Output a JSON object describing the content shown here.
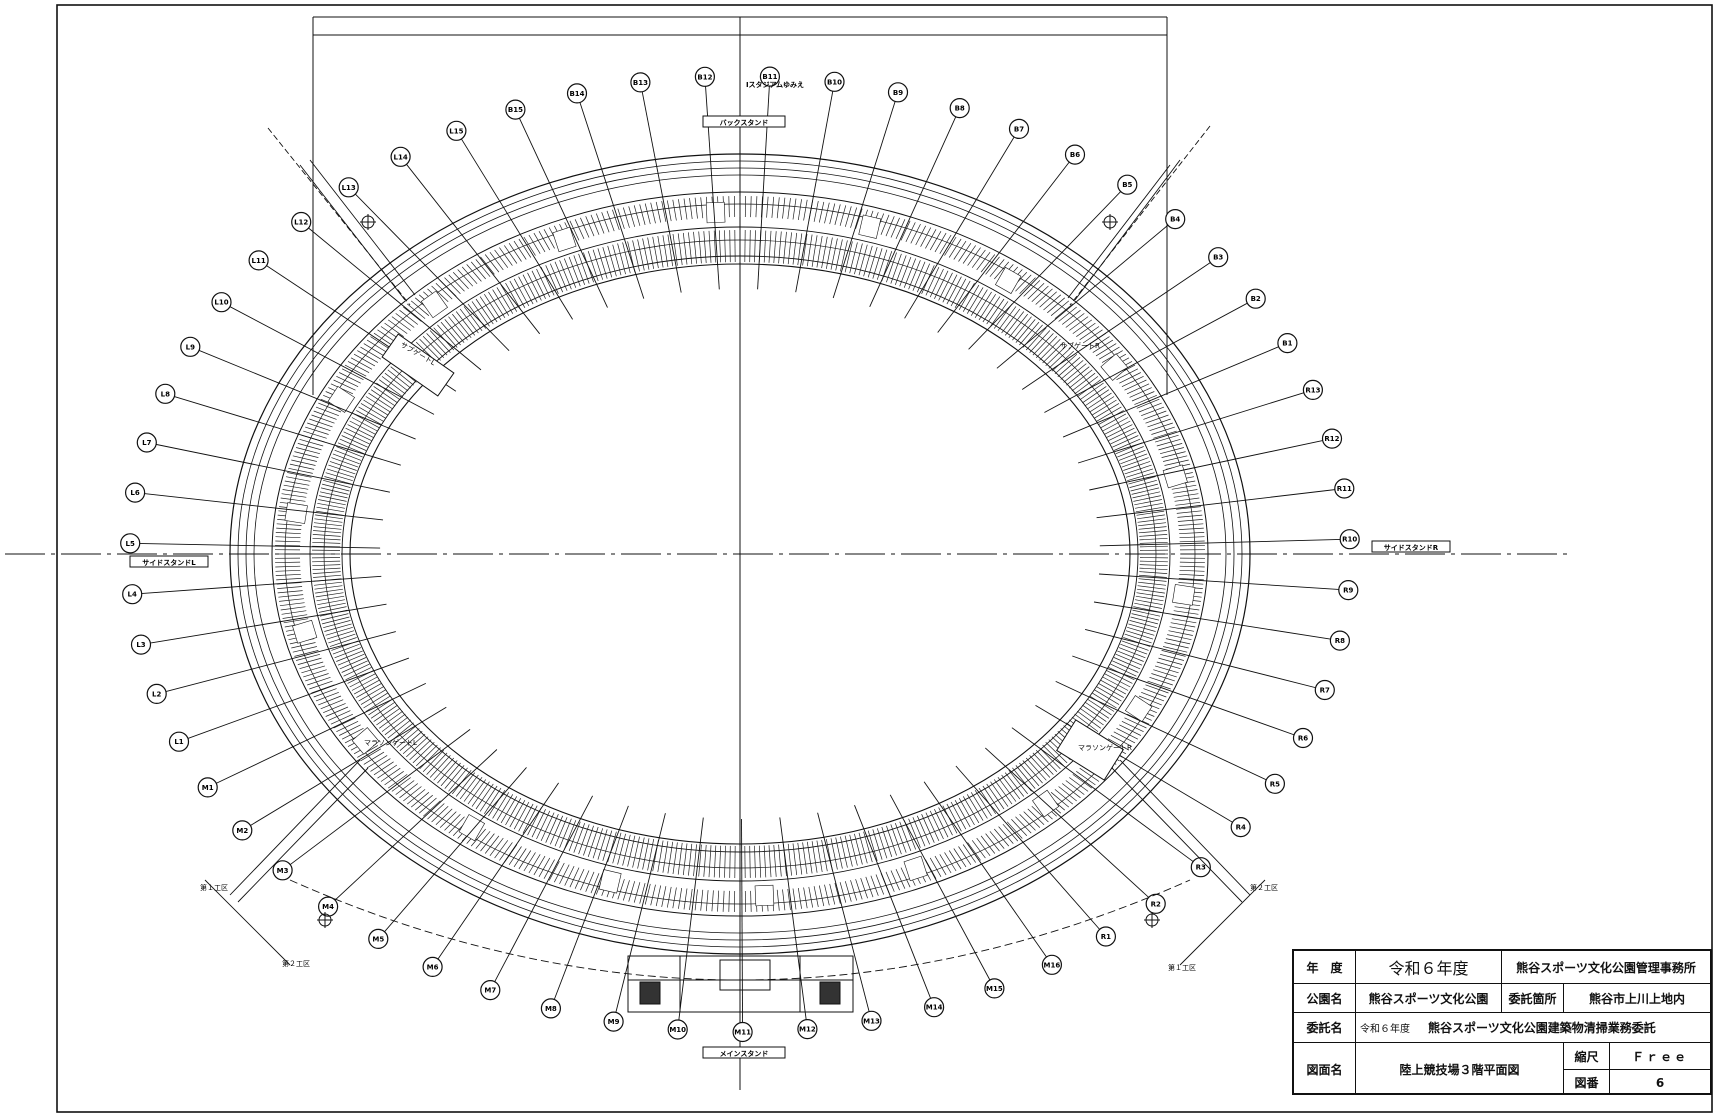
{
  "drawing": {
    "top_caption": "Iスタジアムゆみえ",
    "back_stand_label": "バックスタンド",
    "main_stand_label": "メインスタンド",
    "side_stand_left_label": "サイドスタンドL",
    "side_stand_right_label": "サイドスタンドR",
    "sub_gate_left": "サブゲートL",
    "sub_gate_right": "サブゲートR",
    "marathon_gate_left": "マラソンゲートL",
    "marathon_gate_right": "マラソンゲートR",
    "rail_labels": [
      "第１工区",
      "第２工区",
      "第１工区",
      "第２工区"
    ],
    "bubbles": [
      {
        "label": "B15"
      },
      {
        "label": "B14"
      },
      {
        "label": "B13"
      },
      {
        "label": "B12"
      },
      {
        "label": "B11"
      },
      {
        "label": "B10"
      },
      {
        "label": "B9"
      },
      {
        "label": "B8"
      },
      {
        "label": "B7"
      },
      {
        "label": "B6"
      },
      {
        "label": "B5"
      },
      {
        "label": "B4"
      },
      {
        "label": "B3"
      },
      {
        "label": "B2"
      },
      {
        "label": "B1"
      },
      {
        "label": "R13"
      },
      {
        "label": "R12"
      },
      {
        "label": "R11"
      },
      {
        "label": "R10"
      },
      {
        "label": "R9"
      },
      {
        "label": "R8"
      },
      {
        "label": "R7"
      },
      {
        "label": "R6"
      },
      {
        "label": "R5"
      },
      {
        "label": "R4"
      },
      {
        "label": "R3"
      },
      {
        "label": "R2"
      },
      {
        "label": "R1"
      },
      {
        "label": "M16"
      },
      {
        "label": "M15"
      },
      {
        "label": "M14"
      },
      {
        "label": "M13"
      },
      {
        "label": "M12"
      },
      {
        "label": "M11"
      },
      {
        "label": "M10"
      },
      {
        "label": "M9"
      },
      {
        "label": "M8"
      },
      {
        "label": "M7"
      },
      {
        "label": "M6"
      },
      {
        "label": "M5"
      },
      {
        "label": "M4"
      },
      {
        "label": "M3"
      },
      {
        "label": "M2"
      },
      {
        "label": "M1"
      },
      {
        "label": "L1"
      },
      {
        "label": "L2"
      },
      {
        "label": "L3"
      },
      {
        "label": "L4"
      },
      {
        "label": "L5"
      },
      {
        "label": "L6"
      },
      {
        "label": "L7"
      },
      {
        "label": "L8"
      },
      {
        "label": "L9"
      },
      {
        "label": "L10"
      },
      {
        "label": "L11"
      },
      {
        "label": "L12"
      },
      {
        "label": "L13"
      },
      {
        "label": "L14"
      },
      {
        "label": "L15"
      }
    ]
  },
  "title_block": {
    "year_label": "年　度",
    "year_value": "令和６年度",
    "office": "熊谷スポーツ文化公園管理事務所",
    "park_label": "公園名",
    "park_value": "熊谷スポーツ文化公園",
    "site_label": "委託箇所",
    "site_value": "熊谷市上川上地内",
    "contract_label": "委託名",
    "contract_prefix": "令和６年度",
    "contract_value": "熊谷スポーツ文化公園建築物清掃業務委託",
    "drawing_label": "図面名",
    "drawing_value": "陸上競技場３階平面図",
    "scale_label": "縮尺",
    "scale_value": "Ｆｒｅｅ",
    "number_label": "図番",
    "number_value": "6"
  }
}
